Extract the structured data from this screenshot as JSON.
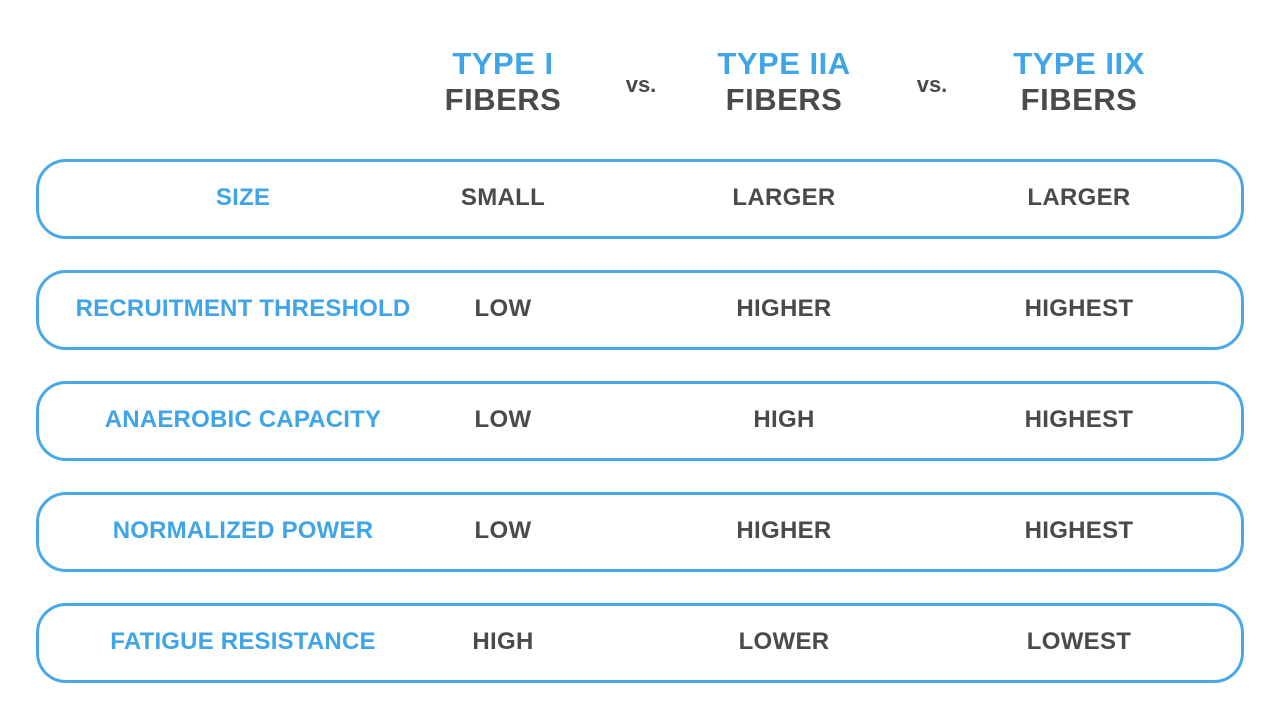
{
  "table": {
    "columns": [
      {
        "type": "TYPE I",
        "fibers": "FIBERS"
      },
      {
        "type": "TYPE IIA",
        "fibers": "FIBERS"
      },
      {
        "type": "TYPE IIX",
        "fibers": "FIBERS"
      }
    ],
    "separators": [
      "vs.",
      "vs."
    ],
    "rows": [
      {
        "label": "SIZE",
        "values": [
          "SMALL",
          "LARGER",
          "LARGER"
        ]
      },
      {
        "label": "RECRUITMENT THRESHOLD",
        "values": [
          "LOW",
          "HIGHER",
          "HIGHEST"
        ]
      },
      {
        "label": "ANAEROBIC CAPACITY",
        "values": [
          "LOW",
          "HIGH",
          "HIGHEST"
        ]
      },
      {
        "label": "NORMALIZED POWER",
        "values": [
          "LOW",
          "HIGHER",
          "HIGHEST"
        ]
      },
      {
        "label": "FATIGUE RESISTANCE",
        "values": [
          "HIGH",
          "LOWER",
          "LOWEST"
        ]
      }
    ]
  }
}
